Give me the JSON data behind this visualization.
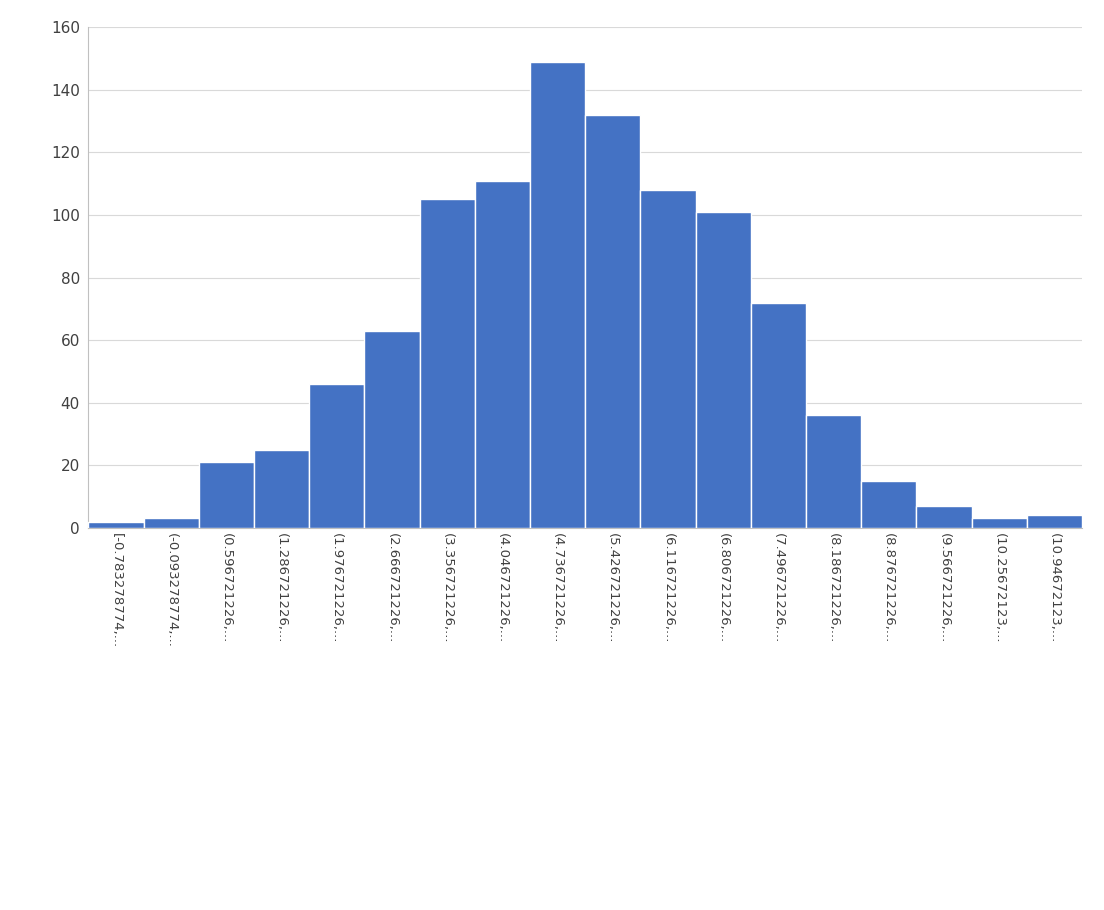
{
  "bar_heights": [
    2,
    3,
    21,
    25,
    46,
    63,
    105,
    111,
    149,
    132,
    108,
    101,
    72,
    36,
    15,
    7,
    3,
    4
  ],
  "bar_labels": [
    "[-0.783278774,...",
    "(-0.093278774,...",
    "(0.596721226,...",
    "(1.286721226,...",
    "(1.976721226,...",
    "(2.666721226,...",
    "(3.356721226,...",
    "(4.046721226,...",
    "(4.736721226,...",
    "(5.426721226,...",
    "(6.116721226,...",
    "(6.806721226,...",
    "(7.496721226,...",
    "(8.186721226,...",
    "(8.876721226,...",
    "(9.566721226,...",
    "(10.25672123,...",
    "(10.94672123,..."
  ],
  "bar_color": "#4472C4",
  "bar_edge_color": "#ffffff",
  "ylim": [
    0,
    160
  ],
  "yticks": [
    0,
    20,
    40,
    60,
    80,
    100,
    120,
    140,
    160
  ],
  "background_color": "#ffffff",
  "plot_area_color": "#ffffff",
  "grid_color": "#d9d9d9",
  "spine_color": "#c0c0c0",
  "tick_label_fontsize": 9.5,
  "ytick_label_fontsize": 11
}
